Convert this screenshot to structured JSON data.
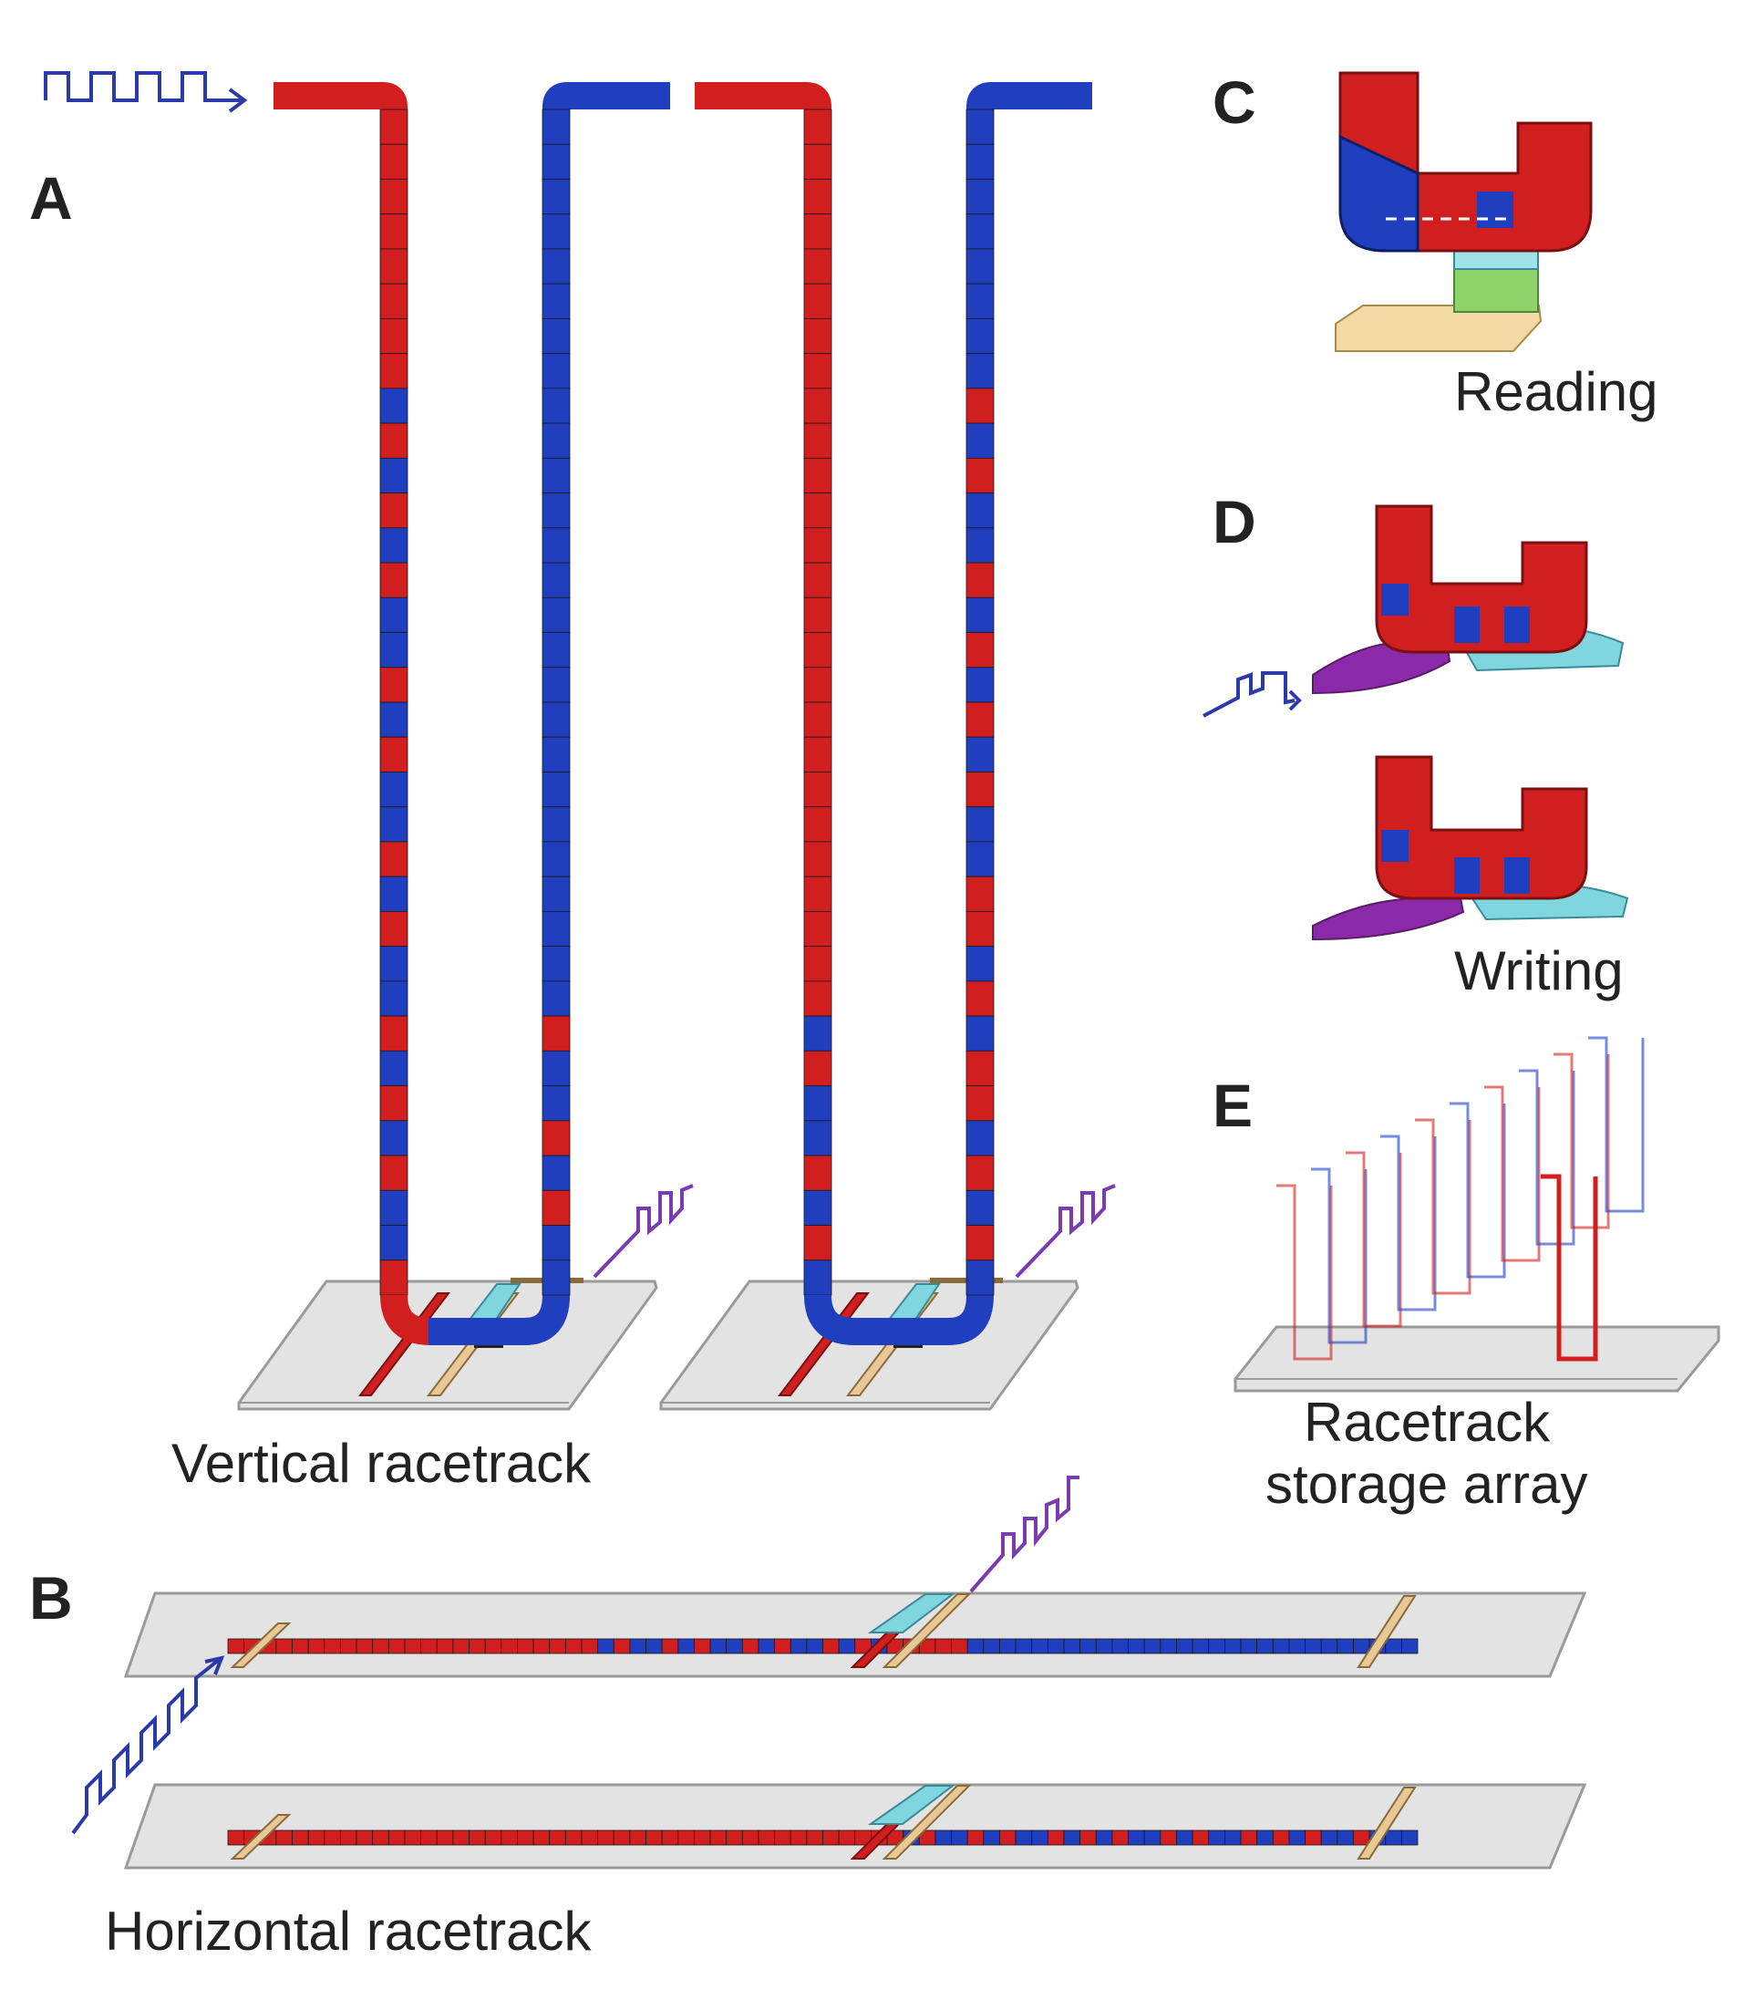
{
  "panels": {
    "a": {
      "letter": "A",
      "caption": "Vertical racetrack"
    },
    "b": {
      "letter": "B",
      "caption": "Horizontal racetrack"
    },
    "c": {
      "letter": "C",
      "caption": "Reading"
    },
    "d": {
      "letter": "D",
      "caption": "Writing"
    },
    "e": {
      "letter": "E",
      "caption_line1": "Racetrack",
      "caption_line2": "storage array"
    }
  },
  "colors": {
    "red": "#d11f1f",
    "blue": "#1f3fbf",
    "pulse_blue": "#2a3aa8",
    "pulse_purple": "#7a3ab0",
    "substrate": "#e3e3e3",
    "substrate_edge": "#9a9a9a",
    "contact_tan": "#e8c895",
    "contact_cyan": "#7fd6de",
    "contact_purple": "#8a2aa8",
    "sensor_green": "#8ed36a",
    "sensor_cyan": "#9fe2ea"
  },
  "domains": {
    "vertical_1_left": [
      1,
      1,
      1,
      1,
      1,
      1,
      1,
      1,
      0,
      1,
      0,
      1,
      0,
      1,
      0,
      0,
      1,
      0,
      1,
      0,
      0,
      1,
      0,
      1,
      0,
      0,
      1,
      0,
      1,
      0,
      1,
      0,
      0,
      1
    ],
    "vertical_1_right": [
      0,
      0,
      0,
      0,
      0,
      0,
      0,
      0,
      0,
      0,
      0,
      0,
      0,
      0,
      0,
      0,
      0,
      0,
      0,
      0,
      0,
      0,
      0,
      0,
      0,
      0,
      1,
      0,
      0,
      1,
      0,
      1,
      0,
      0
    ],
    "vertical_2_left": [
      1,
      1,
      1,
      1,
      1,
      1,
      1,
      1,
      1,
      1,
      1,
      1,
      1,
      1,
      1,
      1,
      1,
      1,
      1,
      1,
      1,
      1,
      1,
      1,
      1,
      1,
      0,
      1,
      0,
      0,
      1,
      0,
      1,
      0
    ],
    "vertical_2_right": [
      0,
      0,
      0,
      0,
      0,
      0,
      0,
      0,
      1,
      0,
      1,
      0,
      0,
      1,
      0,
      1,
      0,
      1,
      0,
      1,
      0,
      0,
      1,
      1,
      0,
      1,
      0,
      1,
      1,
      0,
      1,
      0,
      1,
      0
    ],
    "horizontal_1": [
      1,
      1,
      1,
      1,
      1,
      1,
      1,
      1,
      1,
      1,
      1,
      1,
      1,
      1,
      1,
      1,
      1,
      1,
      1,
      1,
      1,
      1,
      1,
      0,
      1,
      0,
      0,
      1,
      0,
      1,
      0,
      0,
      1,
      0,
      1,
      0,
      0,
      1,
      0,
      1,
      0,
      1,
      1,
      1,
      1,
      1,
      0,
      0,
      0,
      0,
      0,
      0,
      0,
      0,
      0,
      0,
      0,
      0,
      0,
      0,
      0,
      0,
      0,
      0,
      0,
      0,
      0,
      0,
      0,
      0,
      0,
      0,
      0,
      0
    ],
    "horizontal_2": [
      1,
      1,
      1,
      1,
      1,
      1,
      1,
      1,
      1,
      1,
      1,
      1,
      1,
      1,
      1,
      1,
      1,
      1,
      1,
      1,
      1,
      1,
      1,
      1,
      1,
      1,
      1,
      1,
      1,
      1,
      1,
      1,
      1,
      1,
      1,
      1,
      1,
      1,
      1,
      1,
      1,
      1,
      0,
      1,
      0,
      0,
      1,
      0,
      1,
      0,
      0,
      1,
      0,
      1,
      0,
      1,
      0,
      0,
      1,
      0,
      1,
      0,
      0,
      1,
      0,
      1,
      0,
      1,
      0,
      0,
      1,
      0,
      0,
      0
    ]
  }
}
